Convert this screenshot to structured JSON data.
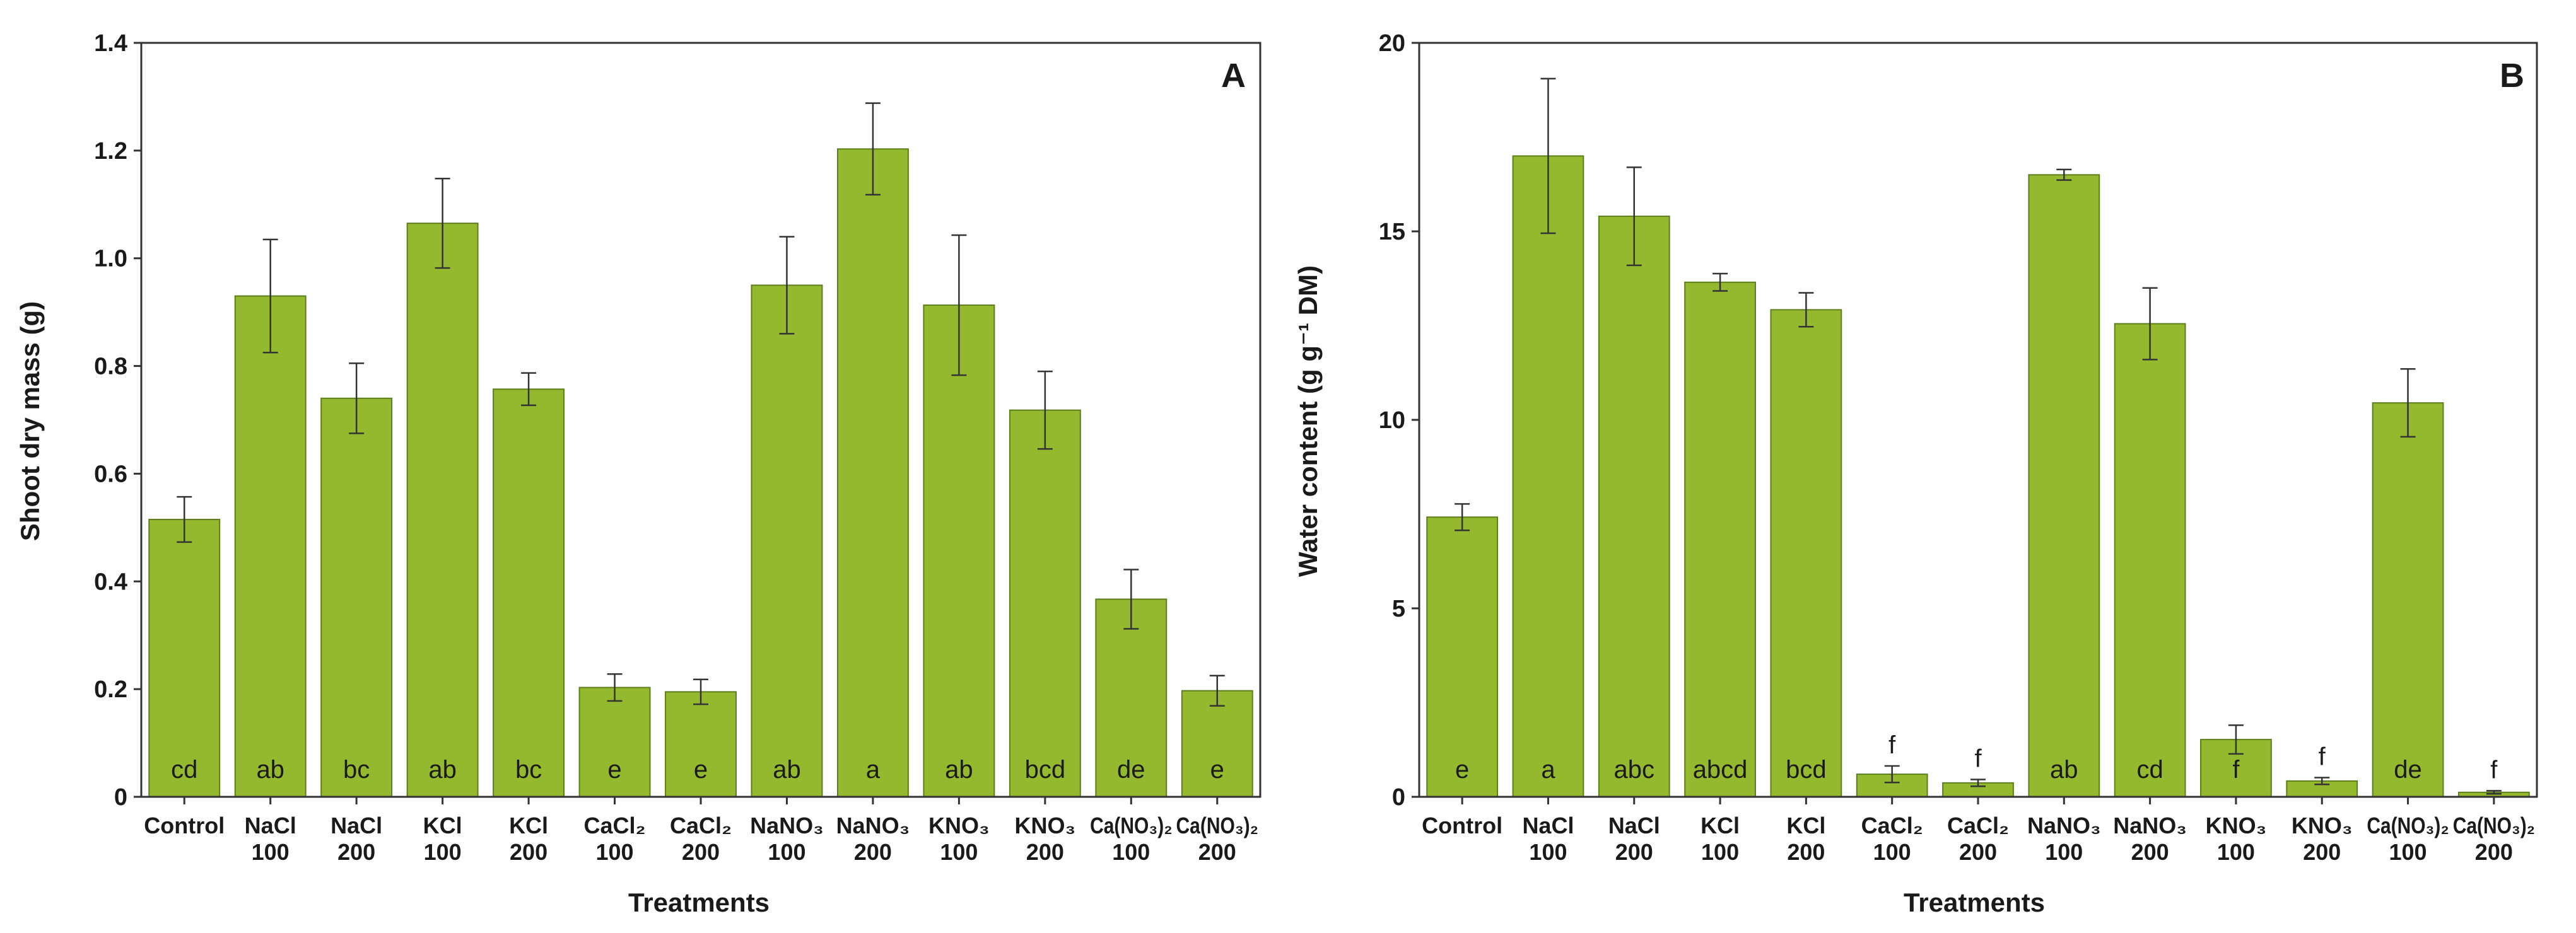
{
  "colors": {
    "bar_fill": "#95b92e",
    "bar_edge": "#5e7d1c",
    "axis": "#333333",
    "text": "#1a1a1a"
  },
  "chart_data": [
    {
      "type": "bar",
      "panel_label": "A",
      "categories": [
        [
          "Control"
        ],
        [
          "NaCl",
          "100"
        ],
        [
          "NaCl",
          "200"
        ],
        [
          "KCl",
          "100"
        ],
        [
          "KCl",
          "200"
        ],
        [
          "CaCl₂",
          "100"
        ],
        [
          "CaCl₂",
          "200"
        ],
        [
          "NaNO₃",
          "100"
        ],
        [
          "NaNO₃",
          "200"
        ],
        [
          "KNO₃",
          "100"
        ],
        [
          "KNO₃",
          "200"
        ],
        [
          "Ca(NO₃)₂",
          "100"
        ],
        [
          "Ca(NO₃)₂",
          "200"
        ]
      ],
      "values": [
        0.515,
        0.93,
        0.74,
        1.065,
        0.757,
        0.203,
        0.195,
        0.95,
        1.203,
        0.913,
        0.718,
        0.367,
        0.197
      ],
      "errors": [
        0.042,
        0.105,
        0.065,
        0.083,
        0.03,
        0.025,
        0.023,
        0.09,
        0.085,
        0.13,
        0.072,
        0.055,
        0.028
      ],
      "significance": [
        "cd",
        "ab",
        "bc",
        "ab",
        "bc",
        "e",
        "e",
        "ab",
        "a",
        "ab",
        "bcd",
        "de",
        "e"
      ],
      "xlabel": "Treatments",
      "ylabel": "Shoot dry mass (g)",
      "ylim": [
        0,
        1.4
      ],
      "yticks": [
        "0",
        "0.2",
        "0.4",
        "0.6",
        "0.8",
        "1.0",
        "1.2",
        "1.4"
      ],
      "grid": false
    },
    {
      "type": "bar",
      "panel_label": "B",
      "categories": [
        [
          "Control"
        ],
        [
          "NaCl",
          "100"
        ],
        [
          "NaCl",
          "200"
        ],
        [
          "KCl",
          "100"
        ],
        [
          "KCl",
          "200"
        ],
        [
          "CaCl₂",
          "100"
        ],
        [
          "CaCl₂",
          "200"
        ],
        [
          "NaNO₃",
          "100"
        ],
        [
          "NaNO₃",
          "200"
        ],
        [
          "KNO₃",
          "100"
        ],
        [
          "KNO₃",
          "200"
        ],
        [
          "Ca(NO₃)₂",
          "100"
        ],
        [
          "Ca(NO₃)₂",
          "200"
        ]
      ],
      "values": [
        7.42,
        17.0,
        15.4,
        13.65,
        12.92,
        0.6,
        0.37,
        16.5,
        12.55,
        1.52,
        0.42,
        10.45,
        0.12
      ],
      "errors": [
        0.35,
        2.05,
        1.3,
        0.23,
        0.45,
        0.22,
        0.09,
        0.14,
        0.95,
        0.38,
        0.09,
        0.9,
        0.04
      ],
      "significance": [
        "e",
        "a",
        "abc",
        "abcd",
        "bcd",
        "f",
        "f",
        "ab",
        "cd",
        "f",
        "f",
        "de",
        "f"
      ],
      "xlabel": "Treatments",
      "ylabel": "Water content (g g⁻¹ DM)",
      "ylim": [
        0,
        20
      ],
      "yticks": [
        "0",
        "5",
        "10",
        "15",
        "20"
      ],
      "grid": false
    }
  ]
}
